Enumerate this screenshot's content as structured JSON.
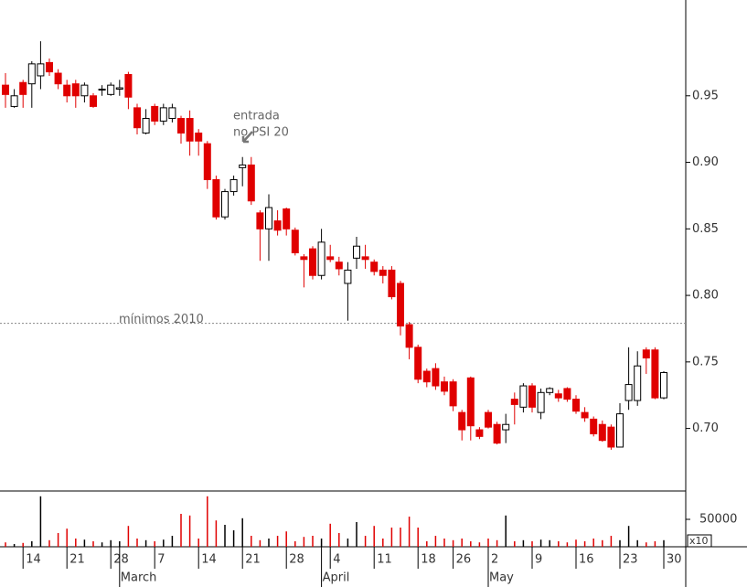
{
  "chart_data": {
    "type": "candlestick",
    "categories": [
      null,
      null,
      "14",
      null,
      null,
      null,
      null,
      "21",
      null,
      null,
      null,
      null,
      "28",
      null,
      null,
      null,
      null,
      "7",
      null,
      null,
      null,
      null,
      "14",
      null,
      null,
      null,
      null,
      "21",
      null,
      null,
      null,
      null,
      "28",
      null,
      null,
      null,
      null,
      "4",
      null,
      null,
      null,
      null,
      "11",
      null,
      null,
      null,
      null,
      "18",
      null,
      null,
      null,
      "26",
      null,
      null,
      null,
      "2",
      null,
      null,
      null,
      null,
      "9",
      null,
      null,
      null,
      null,
      "16",
      null,
      null,
      null,
      null,
      "23",
      null,
      null,
      null,
      null,
      "30"
    ],
    "months": [
      {
        "label": "March",
        "index": 13
      },
      {
        "label": "April",
        "index": 36
      },
      {
        "label": "May",
        "index": 55
      }
    ],
    "open": [
      0.958,
      0.942,
      0.96,
      0.959,
      0.965,
      0.975,
      0.967,
      0.958,
      0.959,
      0.95,
      0.95,
      0.955,
      0.951,
      0.955,
      0.966,
      0.941,
      0.922,
      0.942,
      0.931,
      0.933,
      0.933,
      0.933,
      0.922,
      0.914,
      0.887,
      0.859,
      0.878,
      0.896,
      0.898,
      0.862,
      0.85,
      0.856,
      0.865,
      0.849,
      0.829,
      0.835,
      0.815,
      0.829,
      0.825,
      0.809,
      0.828,
      0.829,
      0.825,
      0.819,
      0.819,
      0.809,
      0.778,
      0.761,
      0.743,
      0.745,
      0.735,
      0.735,
      0.712,
      0.738,
      0.699,
      0.712,
      0.703,
      0.699,
      0.722,
      0.716,
      0.732,
      0.712,
      0.727,
      0.726,
      0.73,
      0.722,
      0.712,
      0.707,
      0.703,
      0.701,
      0.686,
      0.721,
      0.721,
      0.759,
      0.759,
      0.723
    ],
    "high": [
      0.967,
      0.955,
      0.962,
      0.976,
      0.991,
      0.978,
      0.97,
      0.962,
      0.962,
      0.96,
      0.952,
      0.958,
      0.96,
      0.962,
      0.968,
      0.944,
      0.94,
      0.944,
      0.944,
      0.944,
      0.935,
      0.939,
      0.925,
      0.916,
      0.89,
      0.88,
      0.89,
      0.904,
      0.904,
      0.864,
      0.876,
      0.864,
      0.866,
      0.851,
      0.831,
      0.837,
      0.85,
      0.838,
      0.829,
      0.825,
      0.844,
      0.838,
      0.827,
      0.822,
      0.822,
      0.811,
      0.78,
      0.763,
      0.745,
      0.749,
      0.739,
      0.737,
      0.714,
      0.739,
      0.701,
      0.714,
      0.705,
      0.711,
      0.727,
      0.734,
      0.734,
      0.73,
      0.731,
      0.729,
      0.731,
      0.725,
      0.716,
      0.709,
      0.706,
      0.703,
      0.719,
      0.761,
      0.758,
      0.761,
      0.761,
      0.743
    ],
    "low": [
      0.941,
      0.941,
      0.941,
      0.941,
      0.955,
      0.965,
      0.955,
      0.945,
      0.941,
      0.945,
      0.941,
      0.95,
      0.95,
      0.95,
      0.94,
      0.921,
      0.921,
      0.928,
      0.928,
      0.93,
      0.914,
      0.905,
      0.905,
      0.88,
      0.857,
      0.857,
      0.875,
      0.882,
      0.868,
      0.826,
      0.826,
      0.845,
      0.845,
      0.83,
      0.806,
      0.812,
      0.812,
      0.825,
      0.815,
      0.781,
      0.82,
      0.82,
      0.815,
      0.809,
      0.797,
      0.77,
      0.752,
      0.734,
      0.731,
      0.729,
      0.725,
      0.713,
      0.691,
      0.691,
      0.692,
      0.7,
      0.688,
      0.689,
      0.703,
      0.712,
      0.712,
      0.707,
      0.725,
      0.72,
      0.72,
      0.711,
      0.705,
      0.694,
      0.69,
      0.684,
      0.686,
      0.714,
      0.717,
      0.741,
      0.722,
      0.722
    ],
    "close": [
      0.951,
      0.95,
      0.951,
      0.974,
      0.974,
      0.968,
      0.959,
      0.95,
      0.95,
      0.958,
      0.942,
      0.955,
      0.958,
      0.956,
      0.949,
      0.926,
      0.933,
      0.931,
      0.941,
      0.941,
      0.922,
      0.916,
      0.916,
      0.887,
      0.859,
      0.878,
      0.887,
      0.898,
      0.871,
      0.85,
      0.866,
      0.849,
      0.85,
      0.832,
      0.827,
      0.815,
      0.84,
      0.827,
      0.82,
      0.819,
      0.837,
      0.827,
      0.818,
      0.815,
      0.799,
      0.777,
      0.761,
      0.737,
      0.735,
      0.732,
      0.728,
      0.717,
      0.699,
      0.702,
      0.694,
      0.701,
      0.689,
      0.703,
      0.718,
      0.732,
      0.716,
      0.727,
      0.73,
      0.723,
      0.722,
      0.713,
      0.708,
      0.696,
      0.691,
      0.686,
      0.711,
      0.733,
      0.747,
      0.753,
      0.723,
      0.742
    ],
    "volume": [
      8000,
      5000,
      7000,
      10000,
      92000,
      12000,
      25000,
      33000,
      15000,
      13000,
      10000,
      8000,
      12000,
      10000,
      38000,
      15000,
      12000,
      10000,
      13000,
      20000,
      60000,
      57000,
      15000,
      92000,
      48000,
      40000,
      30000,
      52000,
      20000,
      12000,
      15000,
      20000,
      28000,
      10000,
      18000,
      20000,
      15000,
      42000,
      25000,
      15000,
      45000,
      20000,
      38000,
      15000,
      35000,
      35000,
      55000,
      35000,
      10000,
      20000,
      15000,
      12000,
      15000,
      10000,
      8000,
      15000,
      12000,
      57000,
      10000,
      12000,
      10000,
      13000,
      12000,
      10000,
      8000,
      13000,
      10000,
      15000,
      12000,
      20000,
      12000,
      38000,
      12000,
      8000,
      10000,
      12000
    ],
    "up_color": "#ffffff",
    "down_color": "#e00000",
    "ylim": [
      0.653,
      1.022
    ],
    "yticks": [
      {
        "value": 0.7,
        "label": "0.70"
      },
      0.75,
      {
        "value": 0.8,
        "label": "0.80"
      },
      0.85,
      {
        "value": 0.9,
        "label": "0.90"
      },
      0.95
    ],
    "vlim": [
      0,
      100000
    ],
    "vticks": [
      50000
    ],
    "volume_unit": "x10",
    "reference_line": {
      "value": 0.779,
      "label": "mínimos 2010"
    },
    "annotations": [
      {
        "text": "entrada"
      },
      {
        "text": "no PSI 20"
      }
    ]
  }
}
